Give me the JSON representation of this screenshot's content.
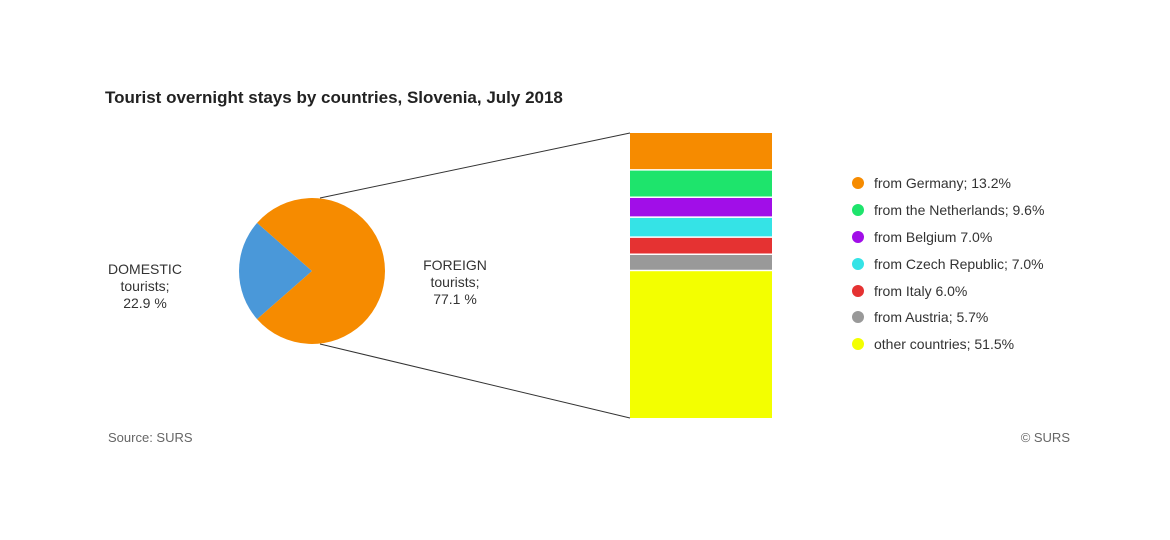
{
  "chart_data": {
    "type": "bar-of-pie",
    "title": "Tourist overnight stays by countries, Slovenia, July 2018",
    "pie": {
      "slices": [
        {
          "key": "domestic",
          "lines": [
            "DOMESTIC",
            "tourists;",
            "22.9 %"
          ],
          "value": 22.9,
          "color": "#4a98d9"
        },
        {
          "key": "foreign",
          "lines": [
            "FOREIGN",
            "tourists;",
            "77.1 %"
          ],
          "value": 77.1,
          "color": "#f68b00"
        }
      ]
    },
    "bar": {
      "segments": [
        {
          "label": "from Germany;  13.2%",
          "value": 13.2,
          "color": "#f68b00"
        },
        {
          "label": "from the Netherlands;  9.6%",
          "value": 9.6,
          "color": "#1ee46c"
        },
        {
          "label": "from Belgium  7.0%",
          "value": 7.0,
          "color": "#a10ee8"
        },
        {
          "label": "from Czech Republic;  7.0%",
          "value": 7.0,
          "color": "#35e3e6"
        },
        {
          "label": "from Italy  6.0%",
          "value": 6.0,
          "color": "#e53232"
        },
        {
          "label": "from Austria;  5.7%",
          "value": 5.7,
          "color": "#999999"
        },
        {
          "label": "other countries;  51.5%",
          "value": 51.5,
          "color": "#f3ff00"
        }
      ]
    },
    "legend_position": "right"
  },
  "footer": {
    "source": "Source: SURS",
    "copyright": "© SURS"
  }
}
